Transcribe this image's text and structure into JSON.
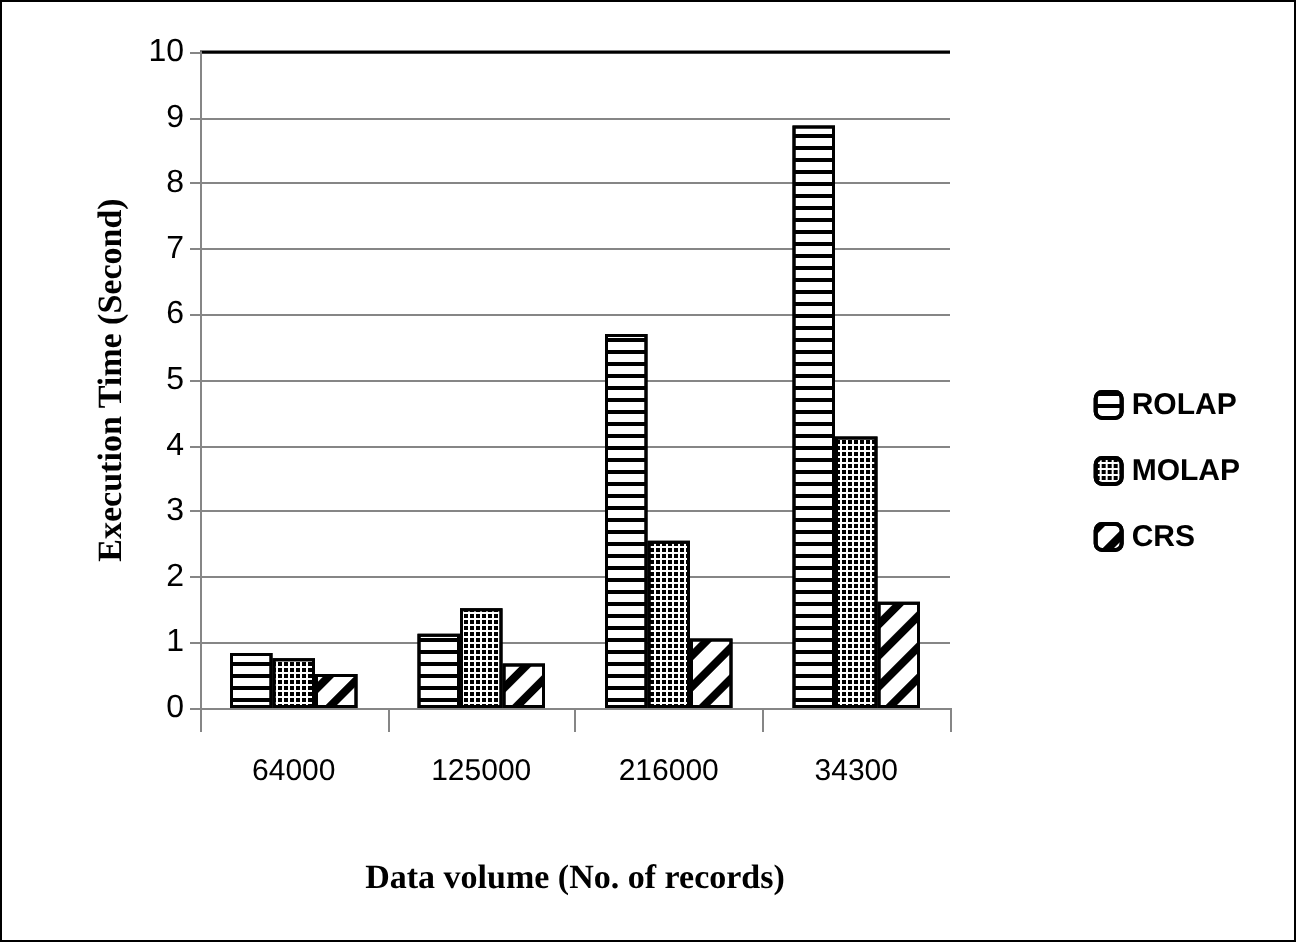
{
  "chart_data": {
    "type": "bar",
    "xlabel": "Data volume (No. of records)",
    "ylabel": "Execution Time (Second)",
    "categories": [
      "64000",
      "125000",
      "216000",
      "34300"
    ],
    "series": [
      {
        "name": "ROLAP",
        "color": "#ffffff",
        "values": [
          0.84,
          1.13,
          5.7,
          8.88
        ]
      },
      {
        "name": "MOLAP",
        "color": "#ffffff",
        "values": [
          0.76,
          1.52,
          2.55,
          4.14
        ]
      },
      {
        "name": "CRS",
        "color": "#ffffff",
        "values": [
          0.52,
          0.68,
          1.06,
          1.62
        ]
      }
    ],
    "ylim": [
      0,
      10
    ],
    "yticks": [
      0,
      1,
      2,
      3,
      4,
      5,
      6,
      7,
      8,
      9,
      10
    ],
    "grid": "y",
    "legend": "right"
  }
}
